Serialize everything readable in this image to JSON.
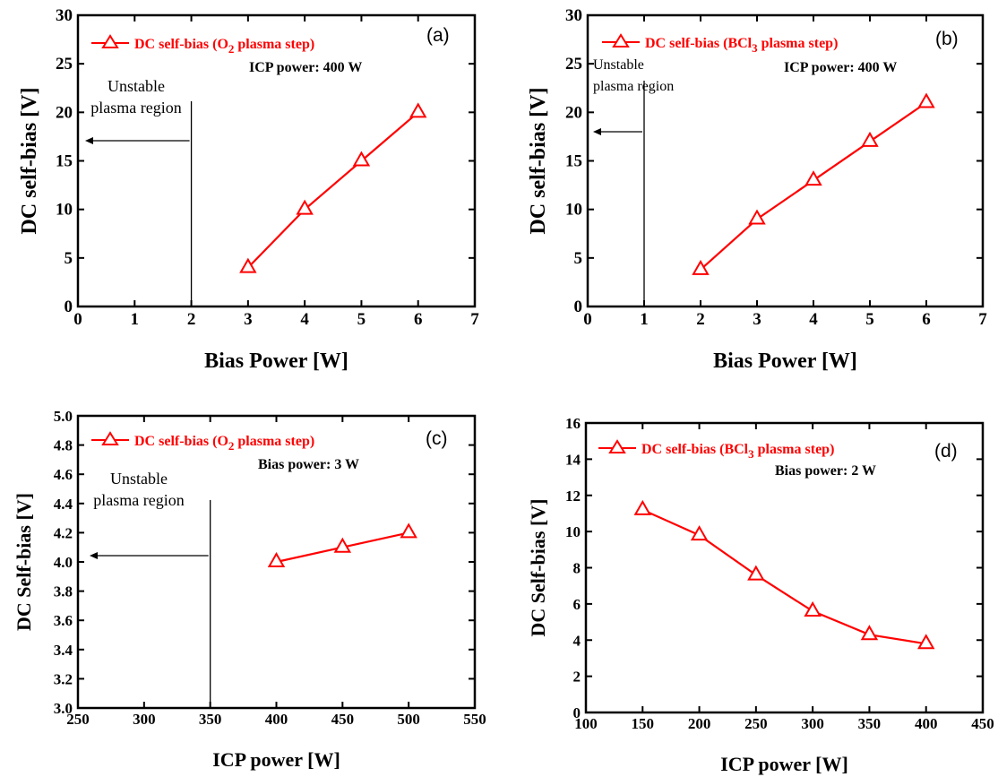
{
  "chart_data": [
    {
      "type": "line",
      "panel_label": "(a)",
      "xlabel": "Bias Power [W]",
      "ylabel": "DC self-bias [V]",
      "xlim": [
        0,
        7
      ],
      "ylim": [
        0,
        30
      ],
      "xticks": [
        "0",
        "1",
        "2",
        "3",
        "4",
        "5",
        "6",
        "7"
      ],
      "yticks": [
        "0",
        "5",
        "10",
        "15",
        "20",
        "25",
        "30"
      ],
      "legend_location": "top-left",
      "series": [
        {
          "name": "DC self-bias (O2 plasma step)",
          "x": [
            3,
            4,
            5,
            6
          ],
          "y": [
            4,
            10,
            15,
            20
          ],
          "marker": "open-triangle",
          "color": "#ff0000"
        }
      ],
      "annotations": {
        "condition": "ICP power: 400 W",
        "region_line1": "Unstable",
        "region_line2": "plasma region",
        "boundary_x": 2
      }
    },
    {
      "type": "line",
      "panel_label": "(b)",
      "xlabel": "Bias Power [W]",
      "ylabel": "DC self-bias [V]",
      "xlim": [
        0,
        7
      ],
      "ylim": [
        0,
        30
      ],
      "xticks": [
        "0",
        "1",
        "2",
        "3",
        "4",
        "5",
        "6",
        "7"
      ],
      "yticks": [
        "0",
        "5",
        "10",
        "15",
        "20",
        "25",
        "30"
      ],
      "legend_location": "top-left",
      "series": [
        {
          "name": "DC self-bias (BCl3 plasma step)",
          "x": [
            2,
            3,
            4,
            5,
            6
          ],
          "y": [
            3.8,
            9,
            13,
            17,
            21
          ],
          "marker": "open-triangle",
          "color": "#ff0000"
        }
      ],
      "annotations": {
        "condition": "ICP power: 400 W",
        "region_line1": "Unstable",
        "region_line2": "plasma region",
        "boundary_x": 1
      }
    },
    {
      "type": "line",
      "panel_label": "(c)",
      "xlabel": "ICP power [W]",
      "ylabel": "DC Self-bias [V]",
      "xlim": [
        250,
        550
      ],
      "ylim": [
        3.0,
        5.0
      ],
      "xticks": [
        "250",
        "300",
        "350",
        "400",
        "450",
        "500",
        "550"
      ],
      "yticks": [
        "3.0",
        "3.2",
        "3.4",
        "3.6",
        "3.8",
        "4.0",
        "4.2",
        "4.4",
        "4.6",
        "4.8",
        "5.0"
      ],
      "legend_location": "top-left",
      "series": [
        {
          "name": "DC self-bias (O2 plasma step)",
          "x": [
            400,
            450,
            500
          ],
          "y": [
            4.0,
            4.1,
            4.2
          ],
          "marker": "open-triangle",
          "color": "#ff0000"
        }
      ],
      "annotations": {
        "condition": "Bias power: 3 W",
        "region_line1": "Unstable",
        "region_line2": "plasma region",
        "boundary_x": 350
      }
    },
    {
      "type": "line",
      "panel_label": "(d)",
      "xlabel": "ICP power [W]",
      "ylabel": "DC Self-bias [V]",
      "xlim": [
        100,
        450
      ],
      "ylim": [
        0,
        16
      ],
      "xticks": [
        "100",
        "150",
        "200",
        "250",
        "300",
        "350",
        "400",
        "450"
      ],
      "yticks": [
        "0",
        "2",
        "4",
        "6",
        "8",
        "10",
        "12",
        "14",
        "16"
      ],
      "legend_location": "top-left",
      "series": [
        {
          "name": "DC self-bias (BCl3 plasma step)",
          "x": [
            150,
            200,
            250,
            300,
            350,
            400
          ],
          "y": [
            11.2,
            9.8,
            7.6,
            5.6,
            4.3,
            3.8
          ],
          "marker": "open-triangle",
          "color": "#ff0000"
        }
      ],
      "annotations": {
        "condition": "Bias power: 2 W"
      }
    }
  ],
  "legend_labels": [
    {
      "prefix": "DC self-bias (O",
      "sub": "2",
      "suffix": " plasma step)"
    },
    {
      "prefix": "DC self-bias (BCl",
      "sub": "3",
      "suffix": " plasma step)"
    },
    {
      "prefix": "DC self-bias (O",
      "sub": "2",
      "suffix": " plasma step)"
    },
    {
      "prefix": "DC self-bias (BCl",
      "sub": "3",
      "suffix": " plasma step)"
    }
  ],
  "colors": {
    "series": "#ff0000",
    "axes": "#000000",
    "text": "#000000"
  }
}
